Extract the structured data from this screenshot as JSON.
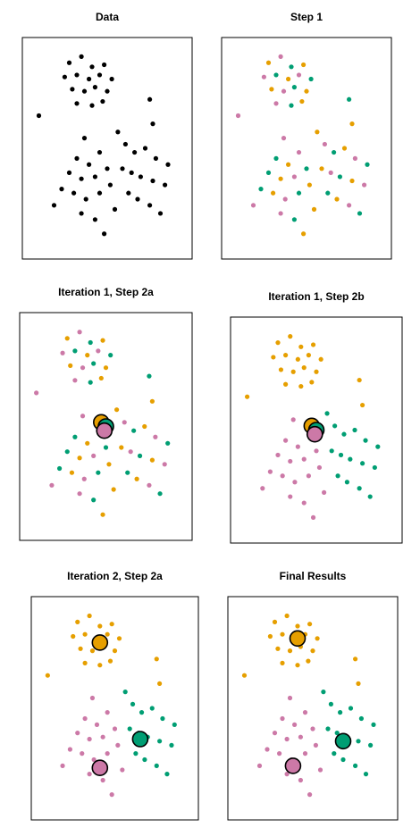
{
  "chart_data": [
    {
      "type": "scatter",
      "title": "Data",
      "xlim": [
        0,
        100
      ],
      "ylim": [
        0,
        100
      ],
      "series": [
        {
          "color": "#000000",
          "x": [
            25,
            33,
            40,
            48,
            22,
            30,
            38,
            45,
            53,
            27,
            35,
            42,
            50,
            30,
            40,
            47,
            5,
            78,
            80,
            35,
            30,
            38,
            45,
            25,
            33,
            42,
            50,
            28,
            36,
            45,
            52,
            33,
            42,
            48,
            15,
            20,
            55,
            62,
            68,
            75,
            82,
            90,
            60,
            66,
            72,
            80,
            88,
            64,
            70,
            78,
            85,
            57
          ],
          "y": [
            92,
            95,
            90,
            91,
            85,
            86,
            84,
            86,
            84,
            79,
            78,
            80,
            78,
            72,
            71,
            73,
            66,
            74,
            62,
            55,
            45,
            42,
            48,
            38,
            35,
            36,
            40,
            28,
            25,
            28,
            32,
            18,
            15,
            8,
            22,
            30,
            20,
            52,
            48,
            50,
            45,
            42,
            40,
            38,
            36,
            34,
            32,
            28,
            25,
            22,
            18,
            58
          ]
        }
      ],
      "centroids": []
    },
    {
      "type": "scatter",
      "title": "Step 1",
      "xlim": [
        0,
        100
      ],
      "ylim": [
        0,
        100
      ],
      "series": [
        {
          "color": "#e69f00",
          "x": [
            25,
            48,
            38,
            27,
            50,
            47,
            80,
            38,
            33,
            28,
            52,
            48,
            55,
            75,
            60,
            80,
            70,
            57
          ],
          "y": [
            92,
            91,
            84,
            79,
            78,
            73,
            62,
            42,
            35,
            28,
            32,
            8,
            20,
            50,
            40,
            34,
            25,
            58
          ]
        },
        {
          "color": "#cc79a7",
          "x": [
            33,
            22,
            45,
            35,
            30,
            5,
            35,
            45,
            42,
            36,
            33,
            15,
            62,
            82,
            66,
            88,
            78
          ],
          "y": [
            95,
            85,
            86,
            78,
            72,
            66,
            55,
            48,
            36,
            25,
            18,
            22,
            52,
            45,
            38,
            32,
            22
          ]
        },
        {
          "color": "#009e73",
          "x": [
            40,
            30,
            53,
            42,
            40,
            78,
            30,
            25,
            50,
            45,
            42,
            20,
            68,
            90,
            72,
            64,
            85
          ],
          "y": [
            90,
            86,
            84,
            80,
            71,
            74,
            45,
            38,
            40,
            28,
            15,
            30,
            48,
            42,
            36,
            28,
            18
          ]
        }
      ],
      "centroids": []
    },
    {
      "type": "scatter",
      "title": "Iteration 1, Step 2a",
      "xlim": [
        0,
        100
      ],
      "ylim": [
        0,
        100
      ],
      "series": [
        {
          "color": "#e69f00",
          "x": [
            25,
            48,
            38,
            27,
            50,
            47,
            80,
            38,
            33,
            28,
            52,
            48,
            55,
            75,
            60,
            80,
            70,
            57
          ],
          "y": [
            92,
            91,
            84,
            79,
            78,
            73,
            62,
            42,
            35,
            28,
            32,
            8,
            20,
            50,
            40,
            34,
            25,
            58
          ]
        },
        {
          "color": "#cc79a7",
          "x": [
            33,
            22,
            45,
            35,
            30,
            5,
            35,
            45,
            42,
            36,
            33,
            15,
            62,
            82,
            66,
            88,
            78
          ],
          "y": [
            95,
            85,
            86,
            78,
            72,
            66,
            55,
            48,
            36,
            25,
            18,
            22,
            52,
            45,
            38,
            32,
            22
          ]
        },
        {
          "color": "#009e73",
          "x": [
            40,
            30,
            53,
            42,
            40,
            78,
            30,
            25,
            50,
            45,
            42,
            20,
            68,
            90,
            72,
            64,
            85
          ],
          "y": [
            90,
            86,
            84,
            80,
            71,
            74,
            45,
            38,
            40,
            28,
            15,
            30,
            48,
            42,
            36,
            28,
            18
          ]
        }
      ],
      "centroids": [
        {
          "color": "#e69f00",
          "x": 47,
          "y": 52
        },
        {
          "color": "#009e73",
          "x": 50,
          "y": 50
        },
        {
          "color": "#cc79a7",
          "x": 49,
          "y": 48
        }
      ]
    },
    {
      "type": "scatter",
      "title": "Iteration 1, Step 2b",
      "xlim": [
        0,
        100
      ],
      "ylim": [
        0,
        100
      ],
      "series": [
        {
          "color": "#e69f00",
          "x": [
            25,
            33,
            40,
            48,
            22,
            30,
            38,
            45,
            53,
            27,
            35,
            42,
            50,
            30,
            40,
            47,
            5,
            78,
            80
          ],
          "y": [
            92,
            95,
            90,
            91,
            85,
            86,
            84,
            86,
            84,
            79,
            78,
            80,
            78,
            72,
            71,
            73,
            66,
            74,
            62
          ]
        },
        {
          "color": "#cc79a7",
          "x": [
            35,
            30,
            38,
            45,
            25,
            33,
            42,
            50,
            28,
            36,
            45,
            52,
            33,
            42,
            48,
            15,
            20,
            55
          ],
          "y": [
            55,
            45,
            42,
            48,
            38,
            35,
            36,
            40,
            28,
            25,
            28,
            32,
            18,
            15,
            8,
            22,
            30,
            20
          ]
        },
        {
          "color": "#009e73",
          "x": [
            62,
            68,
            75,
            82,
            90,
            60,
            66,
            72,
            80,
            88,
            64,
            70,
            78,
            85,
            57
          ],
          "y": [
            52,
            48,
            50,
            45,
            42,
            40,
            38,
            36,
            34,
            32,
            28,
            25,
            22,
            18,
            58
          ]
        }
      ],
      "centroids": [
        {
          "color": "#e69f00",
          "x": 47,
          "y": 52
        },
        {
          "color": "#009e73",
          "x": 50,
          "y": 50
        },
        {
          "color": "#cc79a7",
          "x": 49,
          "y": 48
        }
      ]
    },
    {
      "type": "scatter",
      "title": "Iteration 2, Step 2a",
      "xlim": [
        0,
        100
      ],
      "ylim": [
        0,
        100
      ],
      "series": [
        {
          "color": "#e69f00",
          "x": [
            25,
            33,
            40,
            48,
            22,
            30,
            38,
            45,
            53,
            27,
            35,
            42,
            50,
            30,
            40,
            47,
            5,
            78,
            80
          ],
          "y": [
            92,
            95,
            90,
            91,
            85,
            86,
            84,
            86,
            84,
            79,
            78,
            80,
            78,
            72,
            71,
            73,
            66,
            74,
            62
          ]
        },
        {
          "color": "#cc79a7",
          "x": [
            35,
            30,
            38,
            45,
            25,
            33,
            42,
            50,
            28,
            36,
            45,
            52,
            33,
            42,
            48,
            15,
            20,
            55
          ],
          "y": [
            55,
            45,
            42,
            48,
            38,
            35,
            36,
            40,
            28,
            25,
            28,
            32,
            18,
            15,
            8,
            22,
            30,
            20
          ]
        },
        {
          "color": "#009e73",
          "x": [
            62,
            68,
            75,
            82,
            90,
            60,
            66,
            72,
            80,
            88,
            64,
            70,
            78,
            85,
            57
          ],
          "y": [
            52,
            48,
            50,
            45,
            42,
            40,
            38,
            36,
            34,
            32,
            28,
            25,
            22,
            18,
            58
          ]
        }
      ],
      "centroids": [
        {
          "color": "#e69f00",
          "x": 40,
          "y": 82
        },
        {
          "color": "#cc79a7",
          "x": 40,
          "y": 21
        },
        {
          "color": "#009e73",
          "x": 67,
          "y": 35
        }
      ]
    },
    {
      "type": "scatter",
      "title": "Final Results",
      "xlim": [
        0,
        100
      ],
      "ylim": [
        0,
        100
      ],
      "series": [
        {
          "color": "#e69f00",
          "x": [
            25,
            33,
            40,
            48,
            22,
            30,
            38,
            45,
            53,
            27,
            35,
            42,
            50,
            30,
            40,
            47,
            5,
            78,
            80
          ],
          "y": [
            92,
            95,
            90,
            91,
            85,
            86,
            84,
            86,
            84,
            79,
            78,
            80,
            78,
            72,
            71,
            73,
            66,
            74,
            62
          ]
        },
        {
          "color": "#cc79a7",
          "x": [
            35,
            30,
            38,
            45,
            25,
            33,
            42,
            50,
            28,
            36,
            45,
            52,
            33,
            42,
            48,
            15,
            20,
            55
          ],
          "y": [
            55,
            45,
            42,
            48,
            38,
            35,
            36,
            40,
            28,
            25,
            28,
            32,
            18,
            15,
            8,
            22,
            30,
            20
          ]
        },
        {
          "color": "#009e73",
          "x": [
            62,
            68,
            75,
            82,
            90,
            60,
            66,
            72,
            80,
            88,
            64,
            70,
            78,
            85,
            57
          ],
          "y": [
            52,
            48,
            50,
            45,
            42,
            40,
            38,
            36,
            34,
            32,
            28,
            25,
            22,
            18,
            58
          ]
        }
      ],
      "centroids": [
        {
          "color": "#e69f00",
          "x": 40,
          "y": 84
        },
        {
          "color": "#cc79a7",
          "x": 37,
          "y": 22
        },
        {
          "color": "#009e73",
          "x": 70,
          "y": 34
        }
      ]
    }
  ]
}
